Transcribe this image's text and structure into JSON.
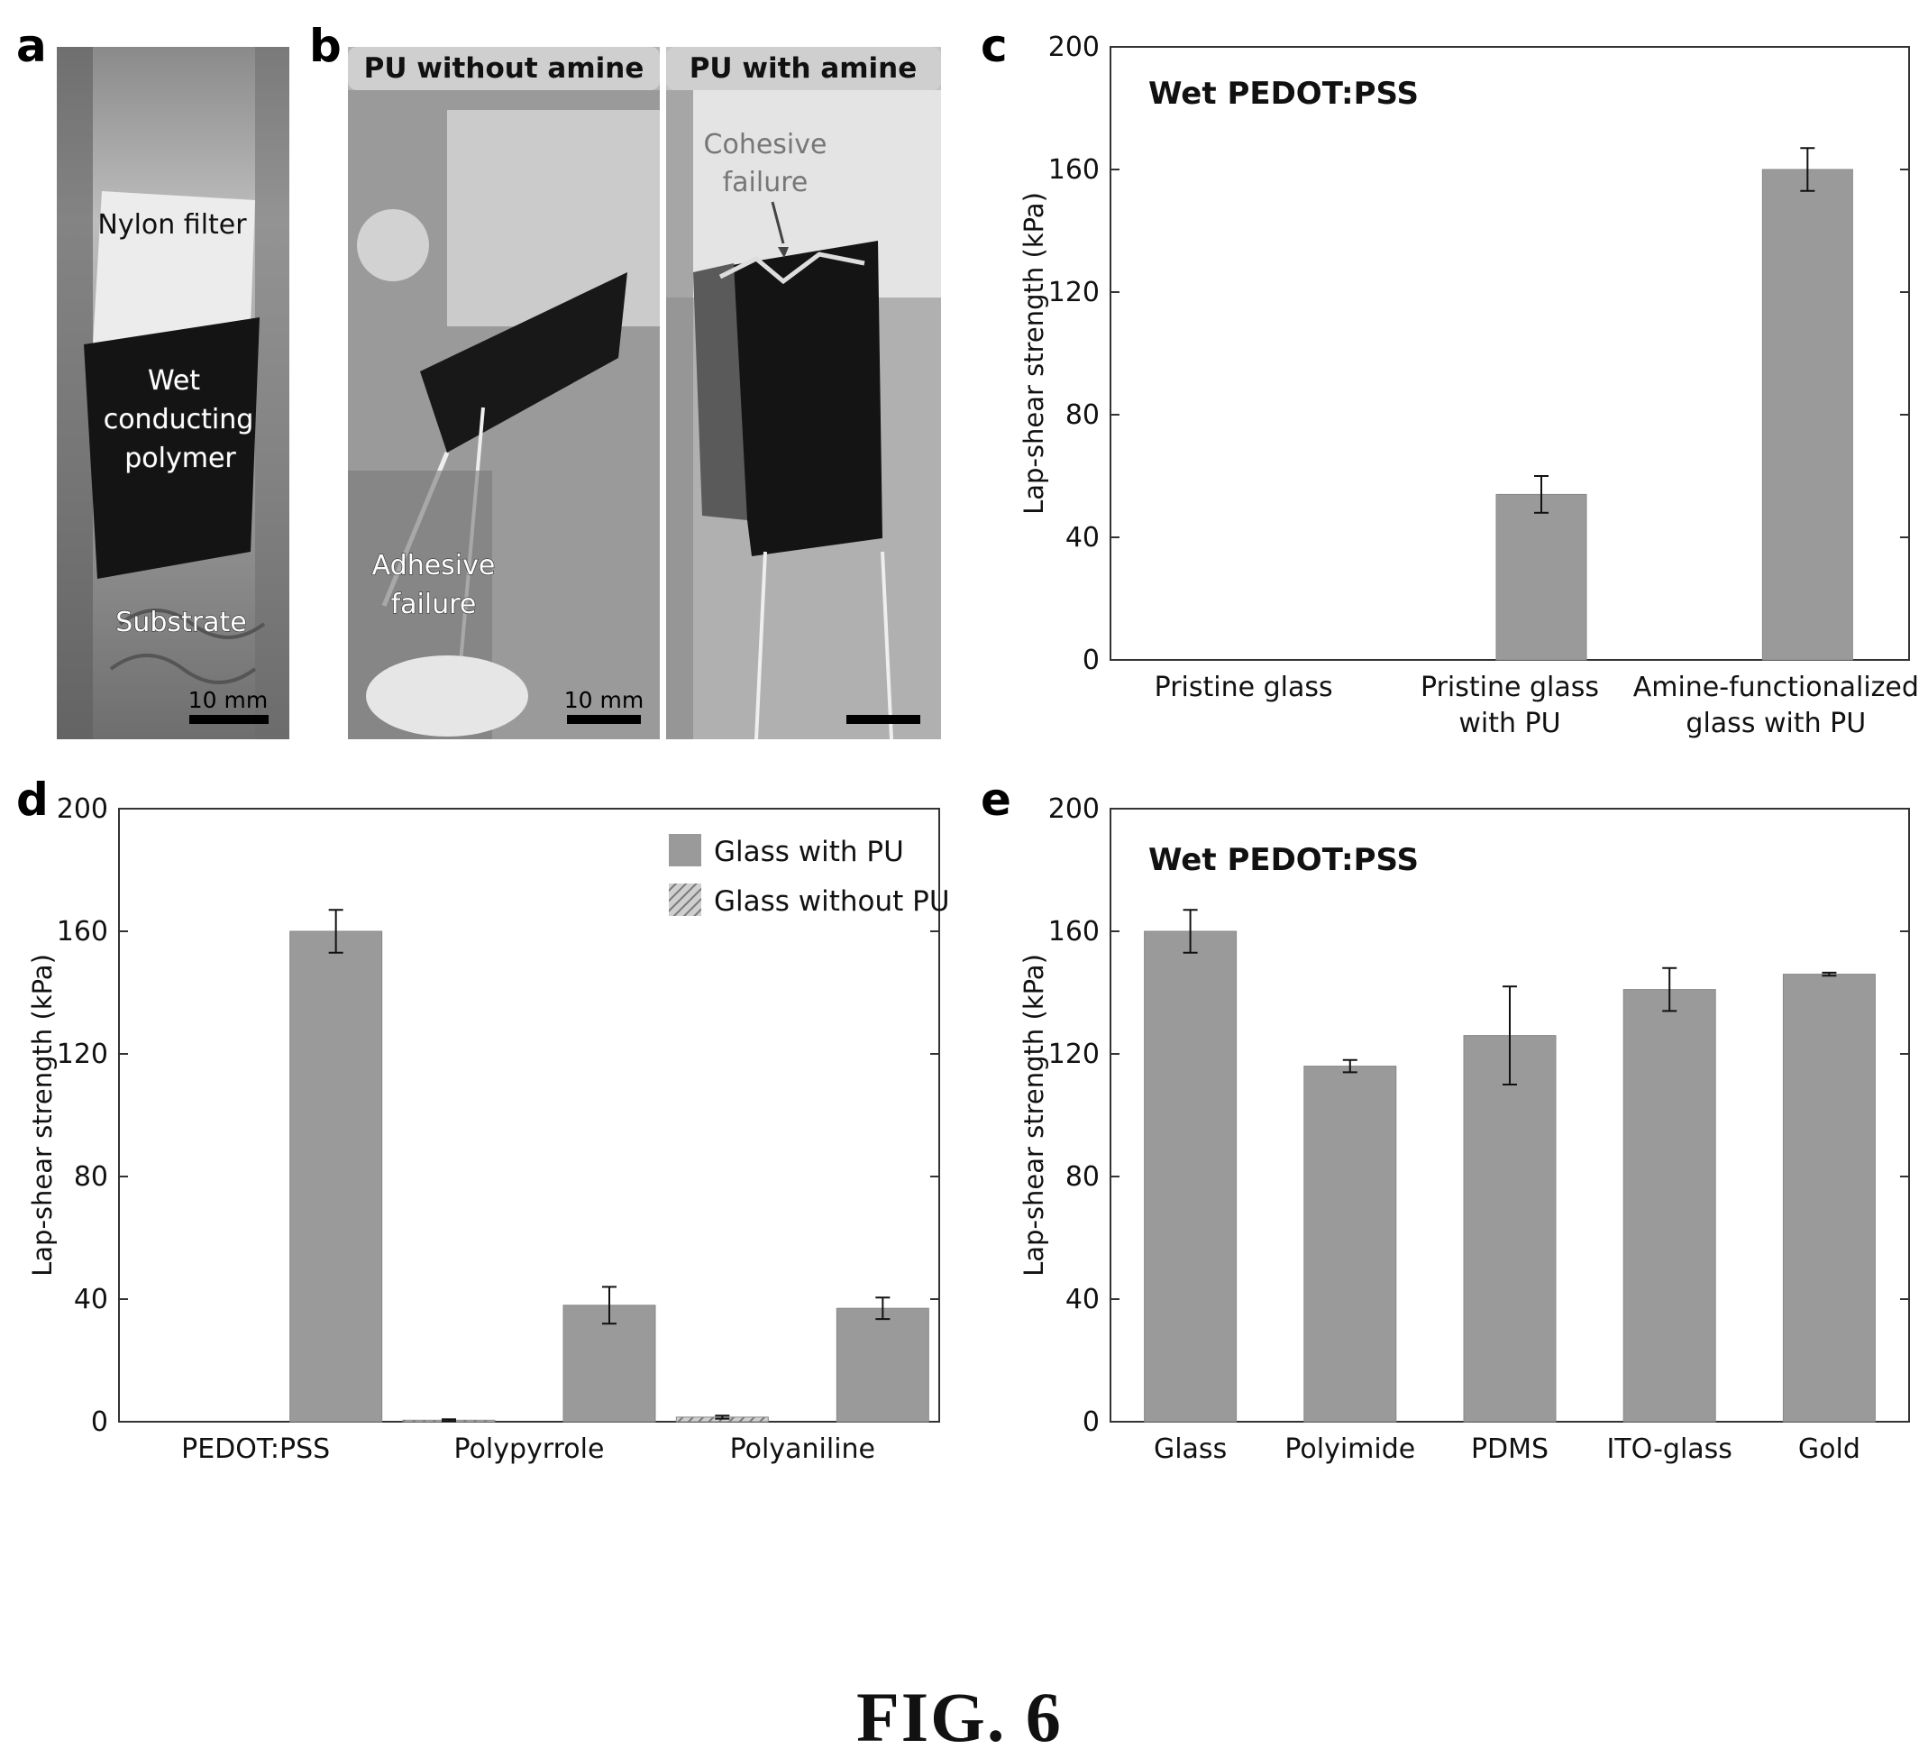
{
  "figure_caption": "FIG. 6",
  "panels": {
    "a": {
      "letter": "a",
      "labels": {
        "nylon_filter": "Nylon filter",
        "wet_1": "Wet",
        "wet_2": "conducting",
        "wet_3": "polymer",
        "substrate": "Substrate",
        "scale": "10 mm"
      }
    },
    "b": {
      "letter": "b",
      "left_title": "PU without amine",
      "right_title": "PU with amine",
      "labels": {
        "adhesive_1": "Adhesive",
        "adhesive_2": "failure",
        "cohesive_1": "Cohesive",
        "cohesive_2": "failure",
        "scale": "10 mm"
      }
    },
    "c": {
      "letter": "c"
    },
    "d": {
      "letter": "d"
    },
    "e": {
      "letter": "e"
    }
  },
  "chart_data": [
    {
      "id": "c",
      "type": "bar",
      "title": "Wet PEDOT:PSS",
      "ylabel": "Lap-shear strength (kPa)",
      "ylim": [
        0,
        200
      ],
      "yticks": [
        0,
        40,
        80,
        120,
        160,
        200
      ],
      "categories": [
        [
          "Pristine glass"
        ],
        [
          "Pristine glass",
          "with PU"
        ],
        [
          "Amine-functionalized",
          "glass with PU"
        ]
      ],
      "series": [
        {
          "values": [
            0,
            54,
            160
          ],
          "errors": [
            0,
            6,
            7
          ],
          "color": "#9a9a9a"
        }
      ]
    },
    {
      "id": "d",
      "type": "bar",
      "title": "",
      "ylabel": "Lap-shear strength (kPa)",
      "ylim": [
        0,
        200
      ],
      "yticks": [
        0,
        40,
        80,
        120,
        160,
        200
      ],
      "categories": [
        [
          "PEDOT:PSS"
        ],
        [
          "Polypyrrole"
        ],
        [
          "Polyaniline"
        ]
      ],
      "legend_position": "top-right",
      "series": [
        {
          "name": "Glass without PU",
          "values": [
            0,
            0.5,
            1.5
          ],
          "errors": [
            0,
            0.3,
            0.5
          ],
          "color": "#9a9a9a",
          "pattern": "hatched"
        },
        {
          "name": "Glass with PU",
          "values": [
            160,
            38,
            37
          ],
          "errors": [
            7,
            6,
            3.5
          ],
          "color": "#9a9a9a"
        }
      ],
      "legend_order": [
        "Glass with PU",
        "Glass without PU"
      ]
    },
    {
      "id": "e",
      "type": "bar",
      "title": "Wet PEDOT:PSS",
      "ylabel": "Lap-shear strength (kPa)",
      "ylim": [
        0,
        200
      ],
      "yticks": [
        0,
        40,
        80,
        120,
        160,
        200
      ],
      "categories": [
        [
          "Glass"
        ],
        [
          "Polyimide"
        ],
        [
          "PDMS"
        ],
        [
          "ITO-glass"
        ],
        [
          "Gold"
        ]
      ],
      "series": [
        {
          "values": [
            160,
            116,
            126,
            141,
            146
          ],
          "errors": [
            7,
            2,
            16,
            7,
            0.5
          ],
          "color": "#9a9a9a"
        }
      ]
    }
  ]
}
